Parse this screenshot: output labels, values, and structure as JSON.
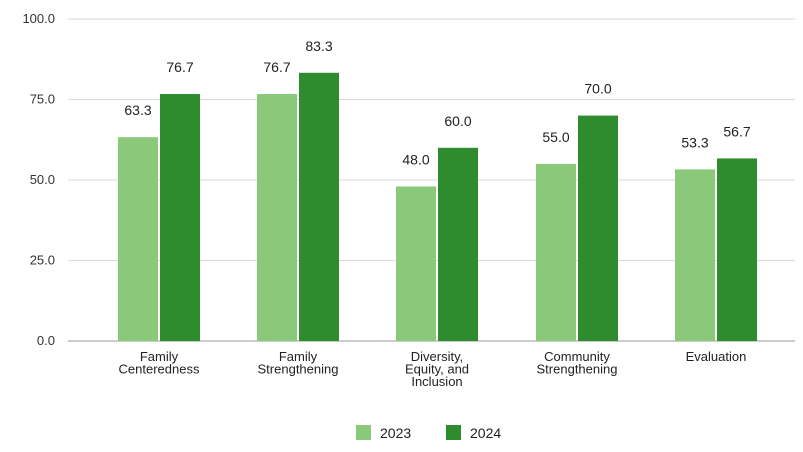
{
  "chart_data": {
    "type": "bar",
    "title": "",
    "xlabel": "",
    "ylabel": "",
    "categories": [
      [
        "Family",
        "Centeredness"
      ],
      [
        "Family",
        "Strengthening"
      ],
      [
        "Diversity,",
        "Equity, and",
        "Inclusion"
      ],
      [
        "Community",
        "Strengthening"
      ],
      [
        "Evaluation"
      ]
    ],
    "series": [
      {
        "name": "2023",
        "color": "#8bc97a",
        "values": [
          63.3,
          76.7,
          48.0,
          55.0,
          53.3
        ],
        "labels": [
          "63.3",
          "76.7",
          "48.0",
          "55.0",
          "53.3"
        ]
      },
      {
        "name": "2024",
        "color": "#2e8b2e",
        "values": [
          76.7,
          83.3,
          60.0,
          70.0,
          56.7
        ],
        "labels": [
          "76.7",
          "83.3",
          "60.0",
          "70.0",
          "56.7"
        ]
      }
    ],
    "ylim": [
      0,
      100
    ],
    "yticks": [
      "0.0",
      "25.0",
      "50.0",
      "75.0",
      "100.0"
    ],
    "grid": true,
    "legend_position": "bottom-center"
  }
}
